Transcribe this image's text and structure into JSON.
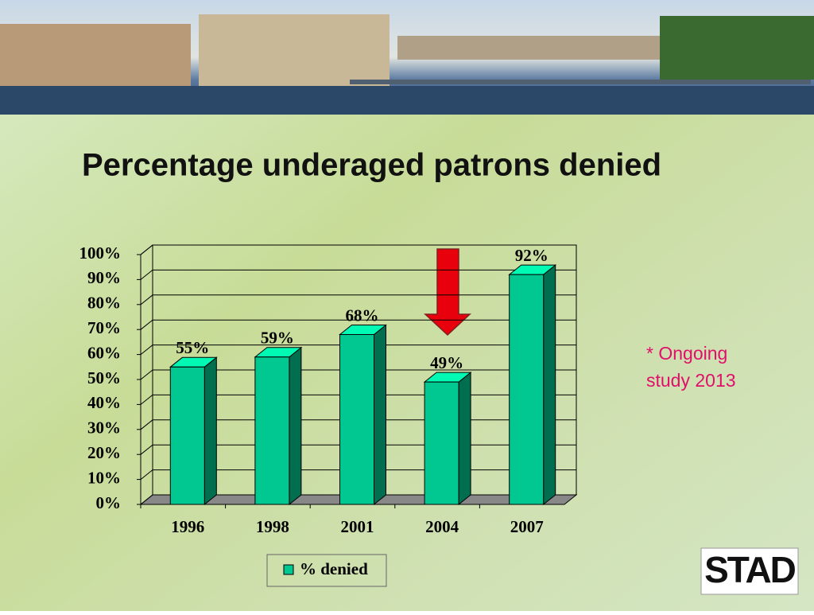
{
  "chart_data": {
    "type": "bar3d",
    "title": "Percentage underaged patrons denied",
    "categories": [
      "1996",
      "1998",
      "2001",
      "2004",
      "2007"
    ],
    "series": [
      {
        "name": "% denied",
        "color": "#00c890",
        "values": [
          55,
          59,
          68,
          49,
          92
        ],
        "value_labels": [
          "55%",
          "59%",
          "68%",
          "49%",
          "92%"
        ]
      }
    ],
    "ylim": [
      0,
      100
    ],
    "yticks": [
      {
        "value": 0,
        "label": "0%"
      },
      {
        "value": 10,
        "label": "10%"
      },
      {
        "value": 20,
        "label": "20%"
      },
      {
        "value": 30,
        "label": "30%"
      },
      {
        "value": 40,
        "label": "40%"
      },
      {
        "value": 50,
        "label": "50%"
      },
      {
        "value": 60,
        "label": "60%"
      },
      {
        "value": 70,
        "label": "70%"
      },
      {
        "value": 80,
        "label": "80%"
      },
      {
        "value": 90,
        "label": "90%"
      },
      {
        "value": 100,
        "label": "100%"
      }
    ],
    "grid": true,
    "annotation": "* Ongoing study 2013"
  },
  "logo": "STAD"
}
